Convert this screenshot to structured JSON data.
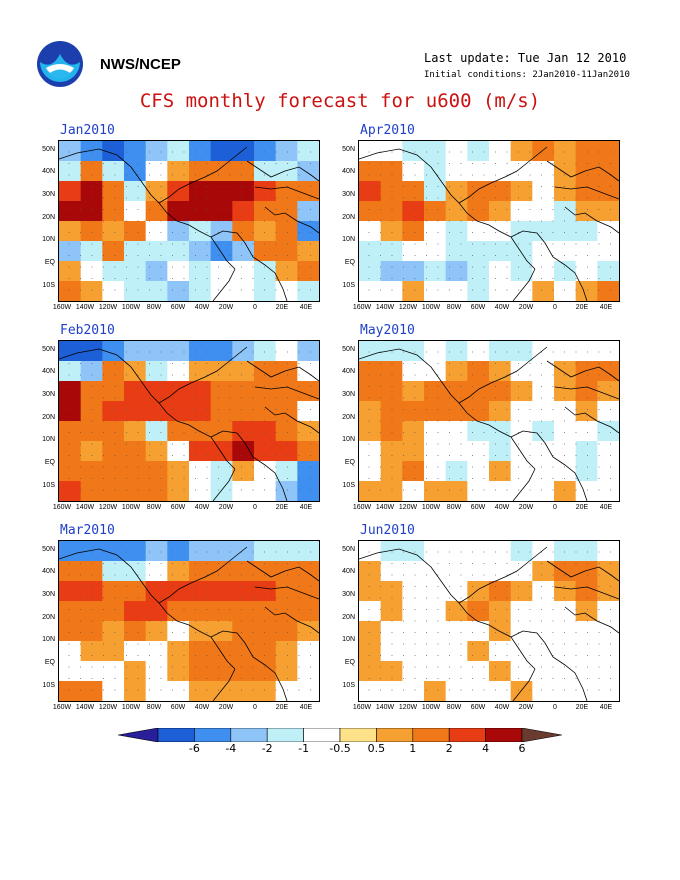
{
  "header": {
    "org": "NWS/NCEP",
    "last_update": "Last update: Tue Jan 12 2010",
    "initial_conditions": "Initial conditions: 2Jan2010-11Jan2010",
    "title": "CFS monthly forecast for u600 (m/s)"
  },
  "axes": {
    "lat_labels": [
      "50N",
      "40N",
      "30N",
      "20N",
      "10N",
      "EQ",
      "10S"
    ],
    "lon_labels": [
      "160W",
      "140W",
      "120W",
      "100W",
      "80W",
      "60W",
      "40W",
      "20W",
      "0",
      "20E",
      "40E"
    ]
  },
  "panels": [
    {
      "title": "Jan2010",
      "field": [
        [
          -2,
          -3,
          -6,
          -4,
          -2,
          -1,
          -3,
          -6,
          -6,
          -3,
          -2,
          -1
        ],
        [
          -1,
          2,
          -1,
          -3,
          0,
          1,
          2,
          3,
          2,
          -1,
          -1,
          -2
        ],
        [
          5,
          6,
          2,
          -1,
          1,
          4,
          6,
          6,
          6,
          4,
          3,
          2
        ],
        [
          6,
          6,
          3,
          0,
          3,
          6,
          6,
          6,
          5,
          3,
          2,
          -2
        ],
        [
          1,
          2,
          1,
          3,
          0,
          -2,
          -1,
          -2,
          2,
          1,
          2,
          -3
        ],
        [
          -2,
          -1,
          2,
          -1,
          -1,
          -1,
          -2,
          -3,
          -2,
          2,
          3,
          1
        ],
        [
          1,
          0,
          -1,
          -1,
          -2,
          0,
          -1,
          0,
          0,
          -1,
          1,
          2
        ],
        [
          2,
          1,
          0,
          -1,
          -1,
          -2,
          -1,
          0,
          0,
          -1,
          0,
          -1
        ]
      ]
    },
    {
      "title": "Apr2010",
      "field": [
        [
          0,
          0,
          -1,
          -1,
          0,
          -1,
          0,
          1,
          2,
          1,
          2,
          2
        ],
        [
          3,
          2,
          0,
          -1,
          0,
          0,
          0,
          0,
          0,
          1,
          3,
          3
        ],
        [
          4,
          3,
          2,
          -1,
          1,
          2,
          3,
          1,
          0,
          1,
          2,
          3
        ],
        [
          2,
          3,
          4,
          2,
          1,
          2,
          1,
          0,
          0,
          -1,
          1,
          1
        ],
        [
          0,
          1,
          2,
          0,
          -1,
          0,
          0,
          -1,
          -1,
          -1,
          -1,
          0
        ],
        [
          -1,
          -1,
          0,
          0,
          -1,
          -1,
          -1,
          -1,
          0,
          0,
          0,
          0
        ],
        [
          -1,
          -2,
          -2,
          -1,
          -2,
          -1,
          0,
          -1,
          0,
          -1,
          0,
          -1
        ],
        [
          0,
          0,
          1,
          0,
          0,
          -1,
          0,
          0,
          1,
          0,
          1,
          2
        ]
      ]
    },
    {
      "title": "Feb2010",
      "field": [
        [
          -6,
          -6,
          -3,
          -2,
          -2,
          -2,
          -3,
          -4,
          -2,
          -1,
          0,
          -2
        ],
        [
          -1,
          -2,
          3,
          1,
          -1,
          0,
          1,
          1,
          1,
          2,
          2,
          0
        ],
        [
          6,
          3,
          3,
          4,
          5,
          4,
          4,
          3,
          3,
          3,
          3,
          2
        ],
        [
          6,
          3,
          4,
          4,
          5,
          5,
          4,
          3,
          3,
          2,
          2,
          0
        ],
        [
          3,
          3,
          3,
          1,
          -1,
          3,
          3,
          3,
          4,
          4,
          3,
          1
        ],
        [
          2,
          1,
          3,
          3,
          1,
          0,
          4,
          5,
          6,
          5,
          4,
          2
        ],
        [
          3,
          3,
          2,
          3,
          2,
          1,
          0,
          -1,
          1,
          0,
          -1,
          -3
        ],
        [
          4,
          3,
          2,
          3,
          2,
          1,
          0,
          -1,
          0,
          0,
          -2,
          -3
        ]
      ]
    },
    {
      "title": "May2010",
      "field": [
        [
          -1,
          -1,
          -1,
          0,
          -1,
          0,
          -1,
          -1,
          0,
          0,
          0,
          0
        ],
        [
          3,
          2,
          0,
          0,
          1,
          2,
          1,
          0,
          0,
          1,
          2,
          2
        ],
        [
          2,
          2,
          1,
          2,
          2,
          3,
          3,
          1,
          0,
          1,
          2,
          1
        ],
        [
          1,
          2,
          2,
          3,
          2,
          2,
          1,
          0,
          0,
          0,
          1,
          0
        ],
        [
          1,
          2,
          1,
          0,
          0,
          -1,
          -1,
          0,
          -1,
          0,
          0,
          -1
        ],
        [
          0,
          1,
          1,
          0,
          0,
          0,
          -1,
          0,
          0,
          0,
          -1,
          0
        ],
        [
          0,
          1,
          2,
          0,
          -1,
          0,
          1,
          0,
          0,
          0,
          -1,
          0
        ],
        [
          1,
          1,
          0,
          1,
          1,
          0,
          0,
          0,
          0,
          1,
          0,
          0
        ]
      ]
    },
    {
      "title": "Mar2010",
      "field": [
        [
          -3,
          -3,
          -4,
          -3,
          -2,
          -3,
          -2,
          -2,
          -2,
          -1,
          -1,
          -1
        ],
        [
          3,
          2,
          -1,
          -1,
          0,
          1,
          2,
          2,
          2,
          3,
          3,
          2
        ],
        [
          4,
          4,
          3,
          3,
          4,
          4,
          4,
          4,
          4,
          4,
          3,
          3
        ],
        [
          3,
          3,
          3,
          4,
          4,
          3,
          3,
          3,
          3,
          3,
          3,
          2
        ],
        [
          2,
          2,
          1,
          2,
          1,
          0,
          1,
          1,
          2,
          2,
          2,
          1
        ],
        [
          0,
          1,
          1,
          0,
          0,
          1,
          2,
          2,
          2,
          2,
          1,
          0
        ],
        [
          0,
          0,
          0,
          1,
          0,
          1,
          2,
          2,
          2,
          2,
          1,
          0
        ],
        [
          3,
          2,
          0,
          1,
          0,
          0,
          1,
          1,
          1,
          1,
          0,
          0
        ]
      ]
    },
    {
      "title": "Jun2010",
      "field": [
        [
          0,
          -1,
          -1,
          0,
          0,
          0,
          0,
          -1,
          0,
          -1,
          -1,
          0
        ],
        [
          1,
          0,
          0,
          0,
          0,
          0,
          0,
          0,
          1,
          2,
          2,
          1
        ],
        [
          1,
          1,
          0,
          0,
          0,
          1,
          2,
          1,
          0,
          1,
          2,
          1
        ],
        [
          0,
          1,
          0,
          0,
          1,
          2,
          1,
          0,
          0,
          0,
          1,
          0
        ],
        [
          1,
          0,
          0,
          0,
          0,
          0,
          1,
          0,
          0,
          0,
          0,
          0
        ],
        [
          1,
          0,
          0,
          0,
          0,
          1,
          0,
          0,
          0,
          0,
          0,
          0
        ],
        [
          1,
          1,
          0,
          0,
          0,
          0,
          1,
          0,
          0,
          0,
          0,
          0
        ],
        [
          0,
          0,
          0,
          1,
          0,
          0,
          0,
          1,
          0,
          0,
          0,
          0
        ]
      ]
    }
  ],
  "colorbar": {
    "labels": [
      "-6",
      "-4",
      "-2",
      "-1",
      "-0.5",
      "0.5",
      "1",
      "2",
      "4",
      "6"
    ],
    "colors": [
      "#2a1f9a",
      "#1c5fd6",
      "#3f8ff0",
      "#8fc4f8",
      "#bff0f8",
      "#ffffff",
      "#fde28a",
      "#f5a030",
      "#f07818",
      "#e83c14",
      "#a80808",
      "#6a3c30"
    ]
  }
}
